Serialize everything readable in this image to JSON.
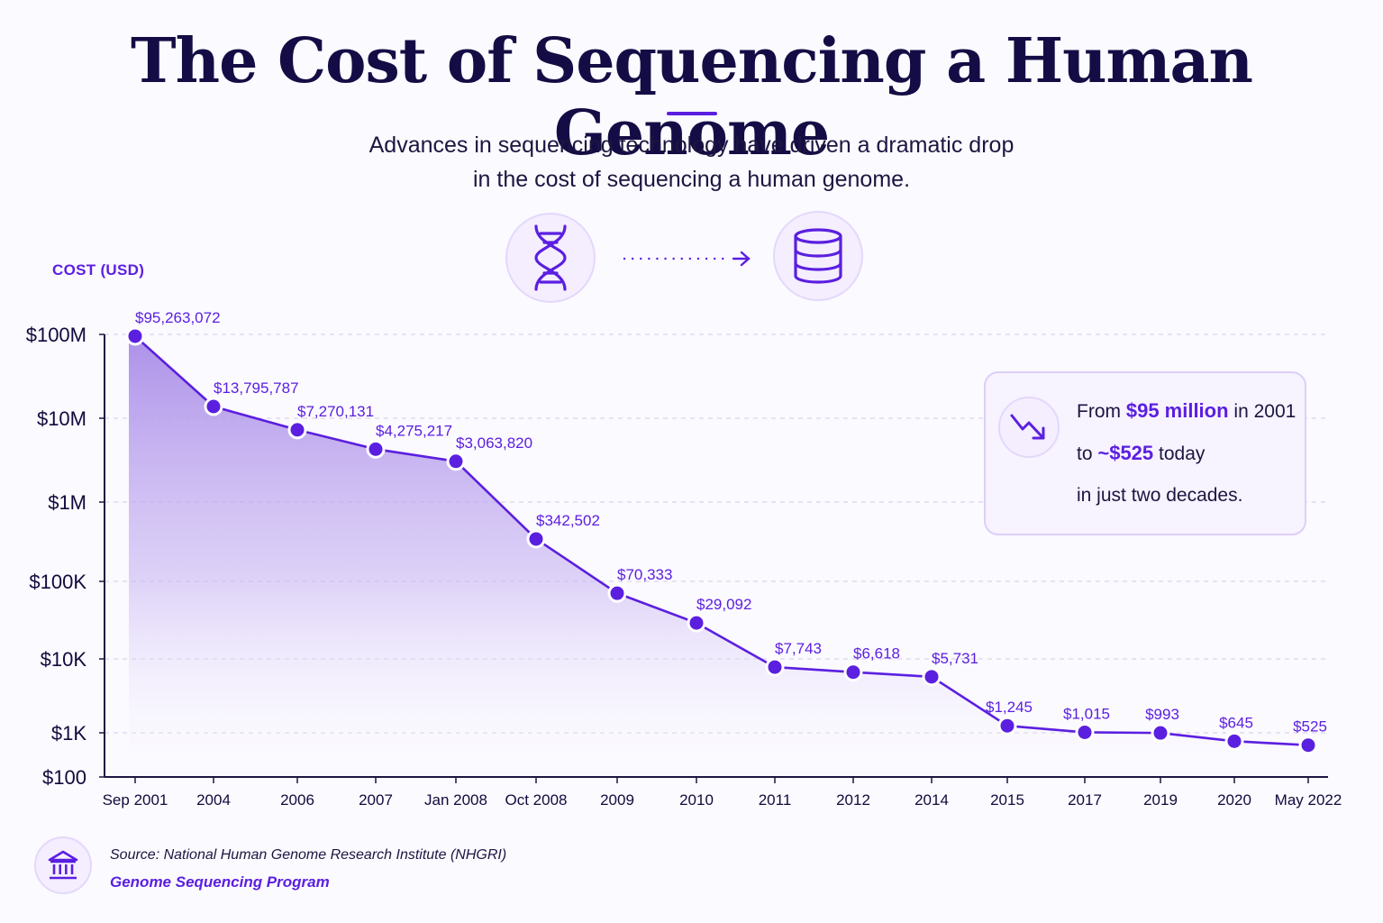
{
  "header": {
    "title": "The Cost of Sequencing a Human Genome",
    "subtitle_line1": "Advances in sequencing technology have driven a dramatic drop",
    "subtitle_line2": "in the cost of sequencing a human genome."
  },
  "icons": {
    "left": "dna-icon",
    "arrow": "dotted-arrow-icon",
    "right": "database-icon",
    "callout": "trend-down-icon",
    "source": "institution-icon"
  },
  "colors": {
    "accent": "#5b1fe0",
    "title": "#140d45",
    "area_top": "#a98ce8",
    "area_bottom": "#ffffff",
    "background": "#fbfaff"
  },
  "chart_data": {
    "type": "area",
    "ylabel": "COST (USD)",
    "y_scale": "log",
    "ylim": [
      100,
      100000000
    ],
    "grid": true,
    "y_ticks": [
      {
        "value": 100,
        "label": "$100"
      },
      {
        "value": 1000,
        "label": "$1K"
      },
      {
        "value": 10000,
        "label": "$10K"
      },
      {
        "value": 100000,
        "label": "$100K"
      },
      {
        "value": 1000000,
        "label": "$1M"
      },
      {
        "value": 10000000,
        "label": "$10M"
      },
      {
        "value": 100000000,
        "label": "$100M"
      }
    ],
    "categories": [
      "Sep 2001",
      "2004",
      "2006",
      "2007",
      "Jan 2008",
      "Oct 2008",
      "2009",
      "2010",
      "2011",
      "2012",
      "2014",
      "2015",
      "2017",
      "2019",
      "2020",
      "May 2022"
    ],
    "values": [
      95263072,
      13795787,
      7270131,
      4275217,
      3063820,
      342502,
      70333,
      29092,
      7743,
      6618,
      5731,
      1245,
      1015,
      993,
      645,
      525
    ],
    "data_labels": [
      "$95,263,072",
      "$13,795,787",
      "$7,270,131",
      "$4,275,217",
      "$3,063,820",
      "$342,502",
      "$70,333",
      "$29,092",
      "$7,743",
      "$6,618",
      "$5,731",
      "$1,245",
      "$1,015",
      "$993",
      "$645",
      "$525"
    ]
  },
  "callout": {
    "from_text": "From",
    "from_value": "$95 million",
    "from_suffix": "in 2001",
    "to_text": "to",
    "to_value": "~$525",
    "to_suffix": "today",
    "line3": "in just two decades."
  },
  "footer": {
    "source": "Source: National Human Genome Research Institute (NHGRI)",
    "program": "Genome Sequencing Program"
  }
}
